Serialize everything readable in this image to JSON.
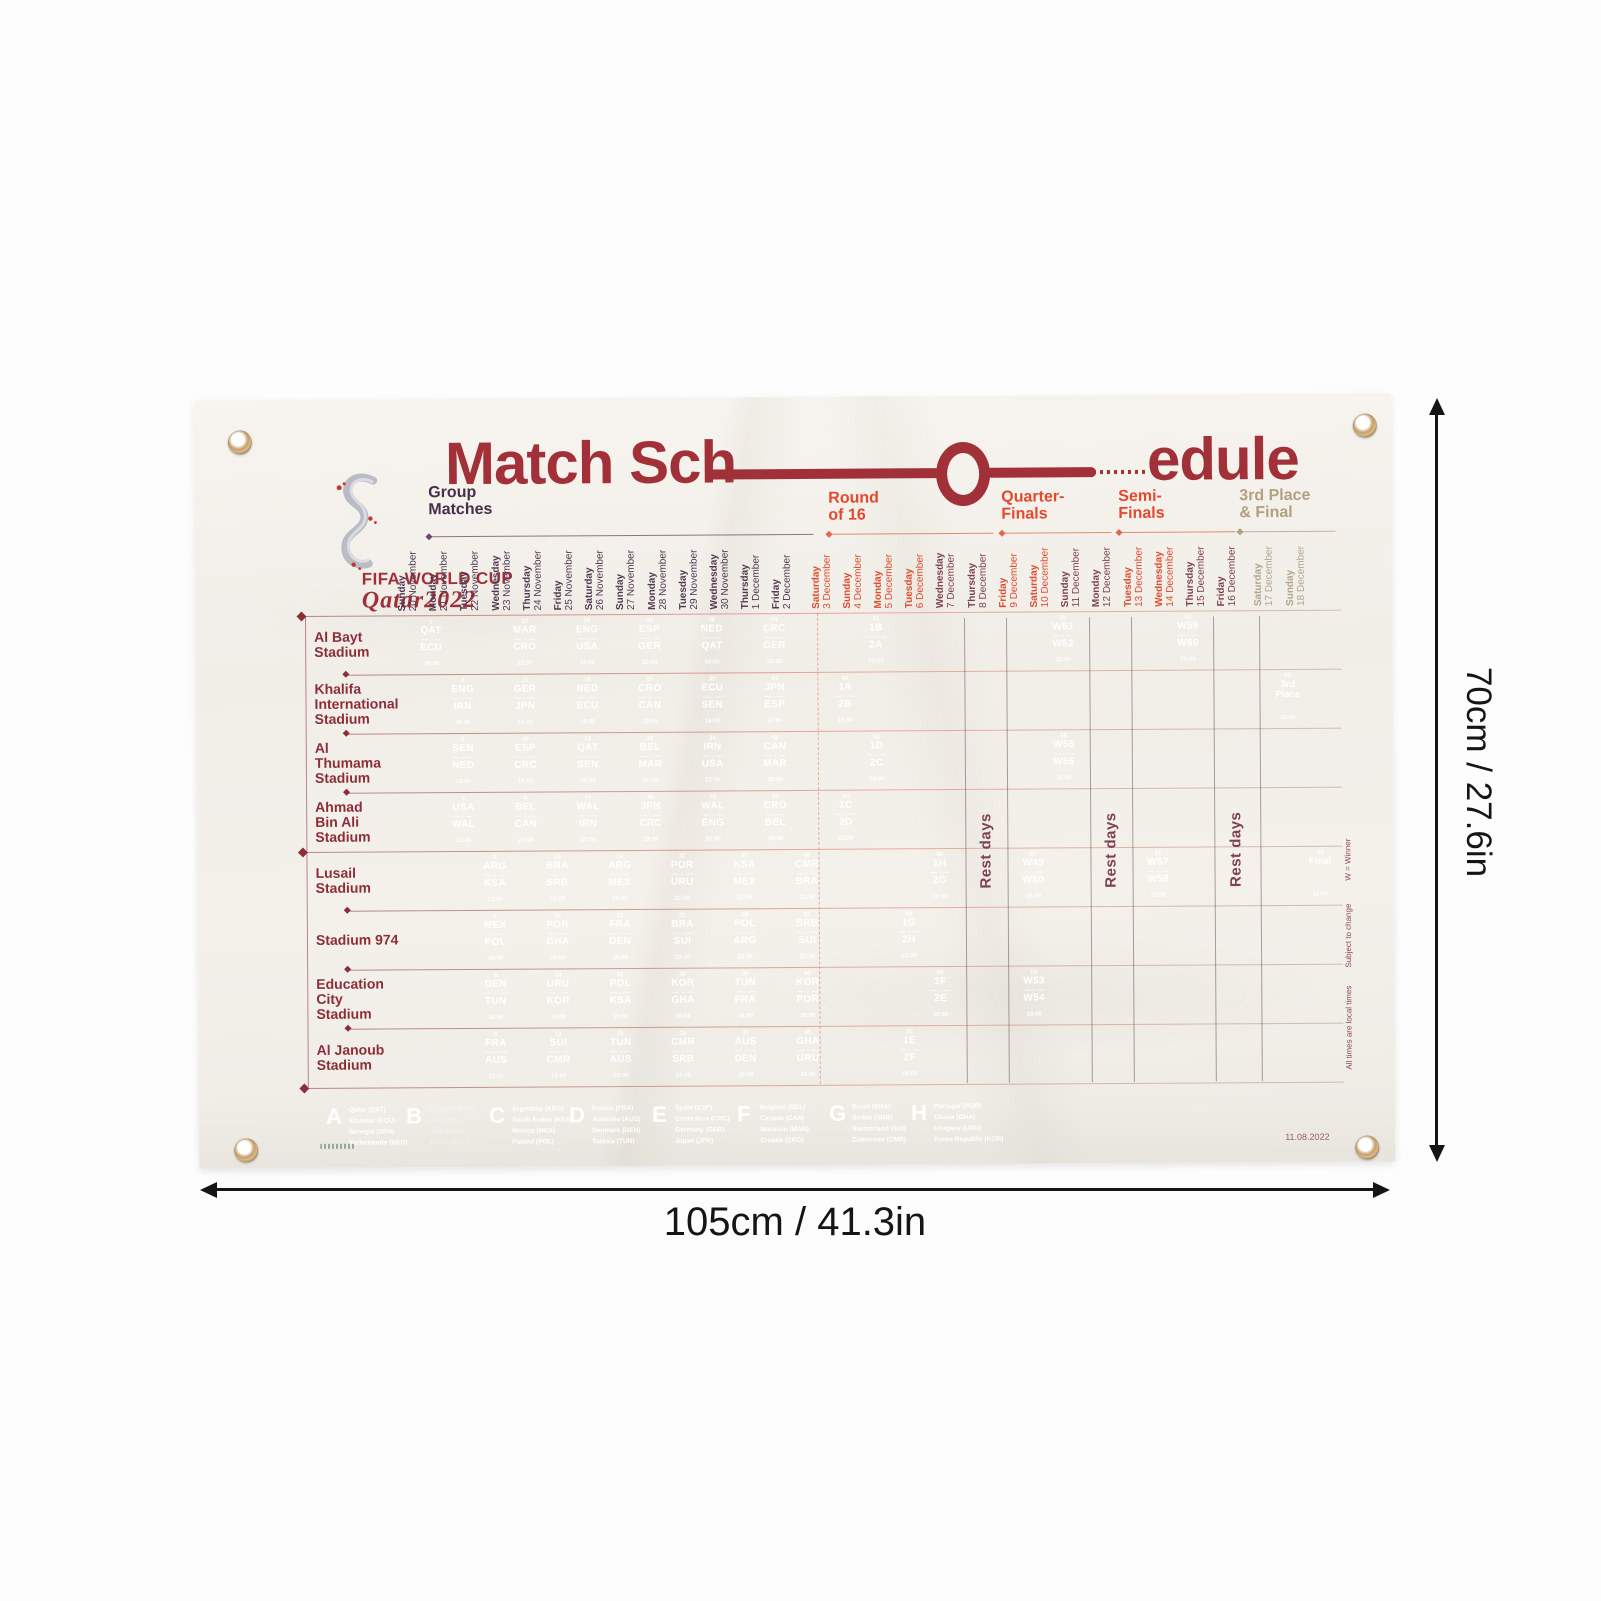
{
  "dimensions": {
    "height_label": "70cm / 27.6in",
    "width_label": "105cm / 41.3in"
  },
  "title": {
    "part1": "Match Sch",
    "part2": "edule"
  },
  "brand": {
    "line1": "FIFA WORLD CUP",
    "line2": "Qatar2022"
  },
  "stages": [
    {
      "id": "group",
      "text": "Group\nMatches"
    },
    {
      "id": "r16",
      "text": "Round\nof 16"
    },
    {
      "id": "qf",
      "text": "Quarter-\nFinals"
    },
    {
      "id": "sf",
      "text": "Semi-\nFinals"
    },
    {
      "id": "final",
      "text": "3rd Place\n& Final"
    }
  ],
  "rest_label": "Rest days",
  "columns": [
    {
      "w": "Sunday",
      "d": "20 November",
      "t": "group"
    },
    {
      "w": "Monday",
      "d": "21 November",
      "t": "group"
    },
    {
      "w": "Tuesday",
      "d": "22 November",
      "t": "group"
    },
    {
      "w": "Wednesday",
      "d": "23 November",
      "t": "group"
    },
    {
      "w": "Thursday",
      "d": "24 November",
      "t": "group"
    },
    {
      "w": "Friday",
      "d": "25 November",
      "t": "group"
    },
    {
      "w": "Saturday",
      "d": "26 November",
      "t": "group"
    },
    {
      "w": "Sunday",
      "d": "27 November",
      "t": "group"
    },
    {
      "w": "Monday",
      "d": "28 November",
      "t": "group"
    },
    {
      "w": "Tuesday",
      "d": "29 November",
      "t": "group"
    },
    {
      "w": "Wednesday",
      "d": "30 November",
      "t": "group"
    },
    {
      "w": "Thursday",
      "d": "1 December",
      "t": "group"
    },
    {
      "w": "Friday",
      "d": "2 December",
      "t": "group"
    },
    {
      "w": "Saturday",
      "d": "3 December",
      "t": "ko"
    },
    {
      "w": "Sunday",
      "d": "4 December",
      "t": "ko"
    },
    {
      "w": "Monday",
      "d": "5 December",
      "t": "ko"
    },
    {
      "w": "Tuesday",
      "d": "6 December",
      "t": "ko"
    },
    {
      "w": "Wednesday",
      "d": "7 December",
      "t": "rest"
    },
    {
      "w": "Thursday",
      "d": "8 December",
      "t": "rest"
    },
    {
      "w": "Friday",
      "d": "9 December",
      "t": "ko"
    },
    {
      "w": "Saturday",
      "d": "10 December",
      "t": "ko"
    },
    {
      "w": "Sunday",
      "d": "11 December",
      "t": "rest"
    },
    {
      "w": "Monday",
      "d": "12 December",
      "t": "rest"
    },
    {
      "w": "Tuesday",
      "d": "13 December",
      "t": "ko"
    },
    {
      "w": "Wednesday",
      "d": "14 December",
      "t": "ko"
    },
    {
      "w": "Thursday",
      "d": "15 December",
      "t": "rest"
    },
    {
      "w": "Friday",
      "d": "16 December",
      "t": "rest"
    },
    {
      "w": "Saturday",
      "d": "17 December",
      "t": "final"
    },
    {
      "w": "Sunday",
      "d": "18 December",
      "t": "final"
    }
  ],
  "stadiums": [
    {
      "name": "Al Bayt\nStadium",
      "matches": [
        {
          "n": "1",
          "a": "QAT",
          "b": "ECU",
          "t": "19:00",
          "g": "A",
          "c": 0
        },
        {
          "n": "12",
          "a": "MAR",
          "b": "CRO",
          "t": "13:00",
          "g": "F",
          "c": 3
        },
        {
          "n": "20",
          "a": "ENG",
          "b": "USA",
          "t": "22:00",
          "g": "B",
          "c": 5
        },
        {
          "n": "28",
          "a": "ESP",
          "b": "GER",
          "t": "22:00",
          "g": "E",
          "c": 7
        },
        {
          "n": "36",
          "a": "NED",
          "b": "QAT",
          "t": "18:00",
          "g": "A",
          "c": 9
        },
        {
          "n": "44",
          "a": "CRC",
          "b": "GER",
          "t": "22:00",
          "g": "E",
          "c": 11
        },
        {
          "n": "51",
          "a": "1B",
          "b": "2A",
          "t": "22:00",
          "g": "ko",
          "c": 14
        },
        {
          "n": "59",
          "a": "W51",
          "b": "W52",
          "t": "22:00",
          "g": "ko",
          "c": 20
        },
        {
          "n": "62",
          "a": "W59",
          "b": "W60",
          "t": "22:00",
          "g": "ko",
          "c": 24
        }
      ]
    },
    {
      "name": "Khalifa\nInternational\nStadium",
      "matches": [
        {
          "n": "3",
          "a": "ENG",
          "b": "IRN",
          "t": "16:00",
          "g": "B",
          "c": 1
        },
        {
          "n": "11",
          "a": "GER",
          "b": "JPN",
          "t": "16:00",
          "g": "E",
          "c": 3
        },
        {
          "n": "19",
          "a": "NED",
          "b": "ECU",
          "t": "19:00",
          "g": "A",
          "c": 5
        },
        {
          "n": "27",
          "a": "CRO",
          "b": "CAN",
          "t": "19:00",
          "g": "F",
          "c": 7
        },
        {
          "n": "35",
          "a": "ECU",
          "b": "SEN",
          "t": "18:00",
          "g": "A",
          "c": 9
        },
        {
          "n": "43",
          "a": "JPN",
          "b": "ESP",
          "t": "22:00",
          "g": "E",
          "c": 11
        },
        {
          "n": "49",
          "a": "1A",
          "b": "2B",
          "t": "18:00",
          "g": "ko",
          "c": 13
        },
        {
          "n": "63",
          "label": [
            "3rd",
            "Place"
          ],
          "t": "18:00",
          "g": "tan",
          "c": 27
        }
      ]
    },
    {
      "name": "Al\nThumama\nStadium",
      "matches": [
        {
          "n": "2",
          "a": "SEN",
          "b": "NED",
          "t": "19:00",
          "g": "A",
          "c": 1
        },
        {
          "n": "10",
          "a": "ESP",
          "b": "CRC",
          "t": "19:00",
          "g": "E",
          "c": 3
        },
        {
          "n": "18",
          "a": "QAT",
          "b": "SEN",
          "t": "16:00",
          "g": "A",
          "c": 5
        },
        {
          "n": "26",
          "a": "BEL",
          "b": "MAR",
          "t": "16:00",
          "g": "F",
          "c": 7
        },
        {
          "n": "34",
          "a": "IRN",
          "b": "USA",
          "t": "22:00",
          "g": "B",
          "c": 9
        },
        {
          "n": "42",
          "a": "CAN",
          "b": "MAR",
          "t": "18:00",
          "g": "F",
          "c": 11
        },
        {
          "n": "52",
          "a": "1D",
          "b": "2C",
          "t": "18:00",
          "g": "ko",
          "c": 14
        },
        {
          "n": "60",
          "a": "W55",
          "b": "W56",
          "t": "18:00",
          "g": "ko",
          "c": 20
        }
      ]
    },
    {
      "name": "Ahmad\nBin Ali\nStadium",
      "matches": [
        {
          "n": "4",
          "a": "USA",
          "b": "WAL",
          "t": "22:00",
          "g": "B",
          "c": 1
        },
        {
          "n": "9",
          "a": "BEL",
          "b": "CAN",
          "t": "22:00",
          "g": "F",
          "c": 3
        },
        {
          "n": "17",
          "a": "WAL",
          "b": "IRN",
          "t": "13:00",
          "g": "B",
          "c": 5
        },
        {
          "n": "25",
          "a": "JPN",
          "b": "CRC",
          "t": "13:00",
          "g": "E",
          "c": 7
        },
        {
          "n": "33",
          "a": "WAL",
          "b": "ENG",
          "t": "22:00",
          "g": "B",
          "c": 9
        },
        {
          "n": "41",
          "a": "CRO",
          "b": "BEL",
          "t": "18:00",
          "g": "F",
          "c": 11
        },
        {
          "n": "50",
          "a": "1C",
          "b": "2D",
          "t": "22:00",
          "g": "ko",
          "c": 13
        }
      ]
    },
    {
      "name": "Lusail\nStadium",
      "matches": [
        {
          "n": "8",
          "a": "ARG",
          "b": "KSA",
          "t": "13:00",
          "g": "C",
          "c": 2
        },
        {
          "n": "16",
          "a": "BRA",
          "b": "SRB",
          "t": "22:00",
          "g": "G",
          "c": 4
        },
        {
          "n": "24",
          "a": "ARG",
          "b": "MEX",
          "t": "22:00",
          "g": "C",
          "c": 6
        },
        {
          "n": "32",
          "a": "POR",
          "b": "URU",
          "t": "22:00",
          "g": "H",
          "c": 8
        },
        {
          "n": "40",
          "a": "KSA",
          "b": "MEX",
          "t": "22:00",
          "g": "C",
          "c": 10
        },
        {
          "n": "48",
          "a": "CMR",
          "b": "BRA",
          "t": "22:00",
          "g": "G",
          "c": 12
        },
        {
          "n": "56",
          "a": "1H",
          "b": "2G",
          "t": "22:00",
          "g": "ko",
          "c": 16
        },
        {
          "n": "57",
          "a": "W49",
          "b": "W50",
          "t": "22:00",
          "g": "ko",
          "c": 19
        },
        {
          "n": "61",
          "a": "W57",
          "b": "W58",
          "t": "22:00",
          "g": "ko",
          "c": 23
        },
        {
          "n": "64",
          "label": [
            "Final"
          ],
          "t": "18:00",
          "g": "tan",
          "c": 28
        }
      ]
    },
    {
      "name": "Stadium 974",
      "matches": [
        {
          "n": "7",
          "a": "MEX",
          "b": "POL",
          "t": "19:00",
          "g": "C",
          "c": 2
        },
        {
          "n": "15",
          "a": "POR",
          "b": "GHA",
          "t": "19:00",
          "g": "H",
          "c": 4
        },
        {
          "n": "23",
          "a": "FRA",
          "b": "DEN",
          "t": "19:00",
          "g": "D",
          "c": 6
        },
        {
          "n": "31",
          "a": "BRA",
          "b": "SUI",
          "t": "19:00",
          "g": "G",
          "c": 8
        },
        {
          "n": "39",
          "a": "POL",
          "b": "ARG",
          "t": "22:00",
          "g": "C",
          "c": 10
        },
        {
          "n": "47",
          "a": "SRB",
          "b": "SUI",
          "t": "22:00",
          "g": "G",
          "c": 12
        },
        {
          "n": "54",
          "a": "1G",
          "b": "2H",
          "t": "22:00",
          "g": "ko",
          "c": 15
        }
      ]
    },
    {
      "name": "Education\nCity\nStadium",
      "matches": [
        {
          "n": "6",
          "a": "DEN",
          "b": "TUN",
          "t": "16:00",
          "g": "D",
          "c": 2
        },
        {
          "n": "14",
          "a": "URU",
          "b": "KOR",
          "t": "16:00",
          "g": "H",
          "c": 4
        },
        {
          "n": "22",
          "a": "POL",
          "b": "KSA",
          "t": "16:00",
          "g": "C",
          "c": 6
        },
        {
          "n": "30",
          "a": "KOR",
          "b": "GHA",
          "t": "16:00",
          "g": "H",
          "c": 8
        },
        {
          "n": "38",
          "a": "TUN",
          "b": "FRA",
          "t": "18:00",
          "g": "D",
          "c": 10
        },
        {
          "n": "46",
          "a": "KOR",
          "b": "POR",
          "t": "18:00",
          "g": "H",
          "c": 12
        },
        {
          "n": "55",
          "a": "1F",
          "b": "2E",
          "t": "18:00",
          "g": "ko",
          "c": 16
        },
        {
          "n": "58",
          "a": "W53",
          "b": "W54",
          "t": "18:00",
          "g": "ko",
          "c": 19
        }
      ]
    },
    {
      "name": "Al Janoub\nStadium",
      "matches": [
        {
          "n": "5",
          "a": "FRA",
          "b": "AUS",
          "t": "22:00",
          "g": "D",
          "c": 2
        },
        {
          "n": "13",
          "a": "SUI",
          "b": "CMR",
          "t": "13:00",
          "g": "G",
          "c": 4
        },
        {
          "n": "21",
          "a": "TUN",
          "b": "AUS",
          "t": "13:00",
          "g": "D",
          "c": 6
        },
        {
          "n": "29",
          "a": "CMR",
          "b": "SRB",
          "t": "13:00",
          "g": "G",
          "c": 8
        },
        {
          "n": "37",
          "a": "AUS",
          "b": "DEN",
          "t": "18:00",
          "g": "D",
          "c": 10
        },
        {
          "n": "45",
          "a": "GHA",
          "b": "URU",
          "t": "18:00",
          "g": "H",
          "c": 12
        },
        {
          "n": "53",
          "a": "1E",
          "b": "2F",
          "t": "18:00",
          "g": "ko",
          "c": 15
        }
      ]
    }
  ],
  "legend": [
    {
      "letter": "A",
      "countries": [
        "Qatar (QAT)",
        "Ecuador (ECU)",
        "Senegal (SEN)",
        "Netherlands (NED)"
      ]
    },
    {
      "letter": "B",
      "countries": [
        "England (ENG)",
        "Iran (IRN)",
        "USA (USA)",
        "Wales (WAL)"
      ]
    },
    {
      "letter": "C",
      "countries": [
        "Argentina (ARG)",
        "Saudi Arabia (KSA)",
        "Mexico (MEX)",
        "Poland (POL)"
      ]
    },
    {
      "letter": "D",
      "countries": [
        "France (FRA)",
        "Australia (AUS)",
        "Denmark (DEN)",
        "Tunisia (TUN)"
      ]
    },
    {
      "letter": "E",
      "countries": [
        "Spain (ESP)",
        "Costa Rica (CRC)",
        "Germany (GER)",
        "Japan (JPN)"
      ]
    },
    {
      "letter": "F",
      "countries": [
        "Belgium (BEL)",
        "Canada (CAN)",
        "Morocco (MAR)",
        "Croatia (CRO)"
      ]
    },
    {
      "letter": "G",
      "countries": [
        "Brazil (BRA)",
        "Serbia (SRB)",
        "Switzerland (SUI)",
        "Cameroon (CMR)"
      ]
    },
    {
      "letter": "H",
      "countries": [
        "Portugal (POR)",
        "Ghana (GHA)",
        "Uruguay (URU)",
        "Korea Republic (KOR)"
      ]
    }
  ],
  "notes": [
    "W = Winner",
    "Subject to change",
    "All times are local times"
  ],
  "print_date": "11.08.2022",
  "colors": {
    "A": "#3d2449",
    "B": "#55c6e8",
    "C": "#df2b3c",
    "D": "#f2c33e",
    "E": "#8e2428",
    "F": "#2f9e60",
    "G": "#2d44a8",
    "H": "#f06eb4",
    "ko": "#ea4729",
    "tan": "#b4a084",
    "title": "#a23038",
    "stage_red": "#e2492e",
    "stage_dark": "#4a2d4a",
    "stage_tan": "#b3a080"
  }
}
